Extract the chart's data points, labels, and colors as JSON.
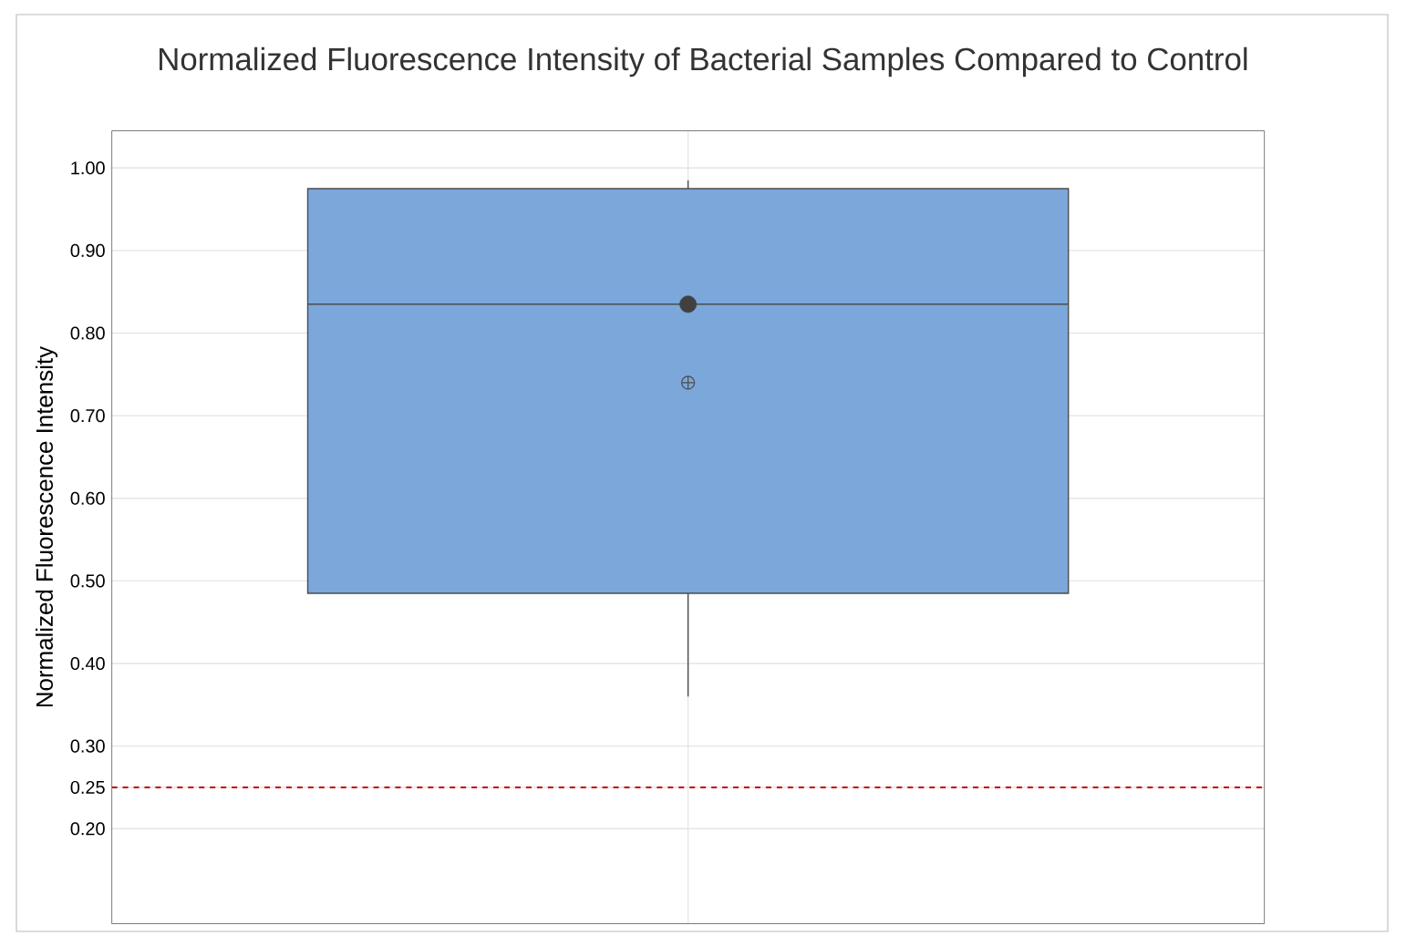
{
  "chart_data": {
    "type": "box",
    "title": "Normalized Fluorescence Intensity of Bacterial Samples Compared to Control",
    "ylabel": "Normalized Fluorescence Intensity",
    "categories": [
      null
    ],
    "series": [
      {
        "color": "#7ba7db",
        "boxes": [
          {
            "low": 0.36,
            "q1": 0.485,
            "median": 0.835,
            "q3": 0.975,
            "high": 0.985,
            "mean": 0.74
          }
        ]
      },
      {
        "type": "scatter",
        "color": "#404040",
        "marker": "circle",
        "values": [
          0.835
        ]
      }
    ],
    "ylim": [
      0.085,
      1.045
    ],
    "yticks": [
      {
        "value": 0.2,
        "label": "0.20"
      },
      {
        "value": 0.25,
        "label": "0.25"
      },
      {
        "value": 0.3,
        "label": "0.30"
      },
      {
        "value": 0.4,
        "label": "0.40"
      },
      {
        "value": 0.5,
        "label": "0.50"
      },
      {
        "value": 0.6,
        "label": "0.60"
      },
      {
        "value": 0.7,
        "label": "0.70"
      },
      {
        "value": 0.8,
        "label": "0.80"
      },
      {
        "value": 0.9,
        "label": "0.90"
      },
      {
        "value": 1.0,
        "label": "1.00"
      }
    ],
    "ref_lines": [
      {
        "axis": "y",
        "value": 0.25,
        "color": "#c00000",
        "line_style": "dashed"
      }
    ],
    "grid": true,
    "tick_labels": "y"
  }
}
